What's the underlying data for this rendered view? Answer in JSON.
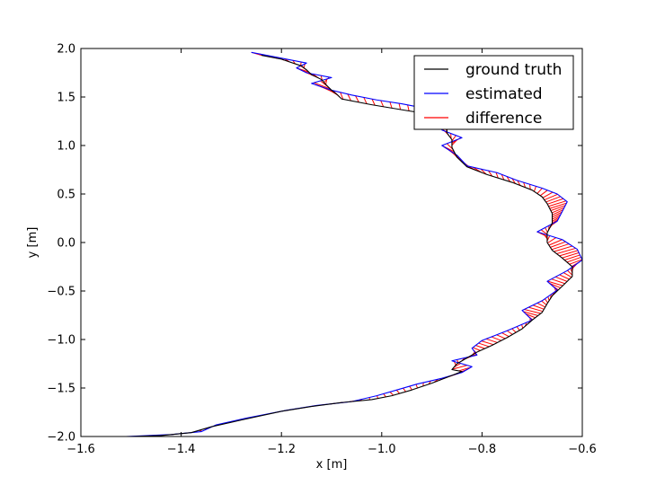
{
  "chart_data": {
    "type": "line",
    "title": "",
    "xlabel": "x [m]",
    "ylabel": "y [m]",
    "xlim": [
      -1.6,
      -0.6
    ],
    "ylim": [
      -2.0,
      2.0
    ],
    "xticks": [
      "−1.6",
      "−1.4",
      "−1.2",
      "−1.0",
      "−0.8",
      "−0.6"
    ],
    "xtick_values": [
      -1.6,
      -1.4,
      -1.2,
      -1.0,
      -0.8,
      -0.6
    ],
    "yticks": [
      "−2.0",
      "−1.5",
      "−1.0",
      "−0.5",
      "0.0",
      "0.5",
      "1.0",
      "1.5",
      "2.0"
    ],
    "ytick_values": [
      -2.0,
      -1.5,
      -1.0,
      -0.5,
      0.0,
      0.5,
      1.0,
      1.5,
      2.0
    ],
    "grid": false,
    "legend_position": "top-right",
    "series": [
      {
        "name": "ground truth",
        "color": "#000000",
        "x": [
          -1.24,
          -1.2,
          -1.16,
          -1.15,
          -1.14,
          -1.12,
          -1.11,
          -1.1,
          -1.09,
          -1.08,
          -1.02,
          -0.95,
          -0.9,
          -0.88,
          -0.87,
          -0.87,
          -0.86,
          -0.86,
          -0.85,
          -0.83,
          -0.79,
          -0.74,
          -0.7,
          -0.68,
          -0.67,
          -0.66,
          -0.66,
          -0.67,
          -0.67,
          -0.66,
          -0.64,
          -0.62,
          -0.62,
          -0.64,
          -0.66,
          -0.67,
          -0.68,
          -0.7,
          -0.72,
          -0.75,
          -0.78,
          -0.81,
          -0.83,
          -0.85,
          -0.86,
          -0.84,
          -0.86,
          -0.9,
          -0.94,
          -0.98,
          -1.02,
          -1.08,
          -1.14,
          -1.2,
          -1.28,
          -1.34,
          -1.38,
          -1.44,
          -1.5
        ],
        "y": [
          1.93,
          1.89,
          1.82,
          1.78,
          1.73,
          1.68,
          1.62,
          1.57,
          1.53,
          1.48,
          1.42,
          1.36,
          1.32,
          1.26,
          1.2,
          1.13,
          1.06,
          0.98,
          0.88,
          0.78,
          0.7,
          0.62,
          0.54,
          0.47,
          0.4,
          0.3,
          0.2,
          0.1,
          0.0,
          -0.08,
          -0.16,
          -0.25,
          -0.35,
          -0.45,
          -0.55,
          -0.63,
          -0.72,
          -0.8,
          -0.89,
          -0.98,
          -1.06,
          -1.13,
          -1.19,
          -1.25,
          -1.31,
          -1.33,
          -1.37,
          -1.45,
          -1.52,
          -1.58,
          -1.62,
          -1.65,
          -1.69,
          -1.74,
          -1.83,
          -1.9,
          -1.96,
          -1.99,
          -2.0
        ]
      },
      {
        "name": "estimated",
        "color": "#0000ff",
        "x": [
          -1.26,
          -1.21,
          -1.15,
          -1.17,
          -1.15,
          -1.1,
          -1.14,
          -1.1,
          -1.06,
          -1.01,
          -0.96,
          -0.91,
          -0.87,
          -0.86,
          -0.88,
          -0.84,
          -0.88,
          -0.85,
          -0.83,
          -0.77,
          -0.73,
          -0.68,
          -0.65,
          -0.63,
          -0.64,
          -0.65,
          -0.69,
          -0.64,
          -0.61,
          -0.6,
          -0.63,
          -0.67,
          -0.65,
          -0.68,
          -0.72,
          -0.7,
          -0.75,
          -0.8,
          -0.82,
          -0.81,
          -0.86,
          -0.82,
          -0.84,
          -0.88,
          -0.93,
          -0.97,
          -1.01,
          -1.06,
          -1.13,
          -1.19,
          -1.27,
          -1.33,
          -1.36,
          -1.42,
          -1.51
        ],
        "y": [
          1.96,
          1.91,
          1.85,
          1.8,
          1.75,
          1.7,
          1.64,
          1.57,
          1.52,
          1.47,
          1.43,
          1.38,
          1.31,
          1.24,
          1.16,
          1.08,
          1.0,
          0.9,
          0.79,
          0.72,
          0.64,
          0.56,
          0.5,
          0.42,
          0.32,
          0.22,
          0.11,
          0.03,
          -0.07,
          -0.18,
          -0.29,
          -0.4,
          -0.49,
          -0.6,
          -0.7,
          -0.8,
          -0.91,
          -1.01,
          -1.09,
          -1.16,
          -1.22,
          -1.28,
          -1.34,
          -1.4,
          -1.46,
          -1.52,
          -1.58,
          -1.64,
          -1.68,
          -1.73,
          -1.81,
          -1.88,
          -1.95,
          -1.98,
          -2.0
        ]
      },
      {
        "name": "difference",
        "color": "#ff0000",
        "x": [],
        "y": []
      }
    ]
  }
}
